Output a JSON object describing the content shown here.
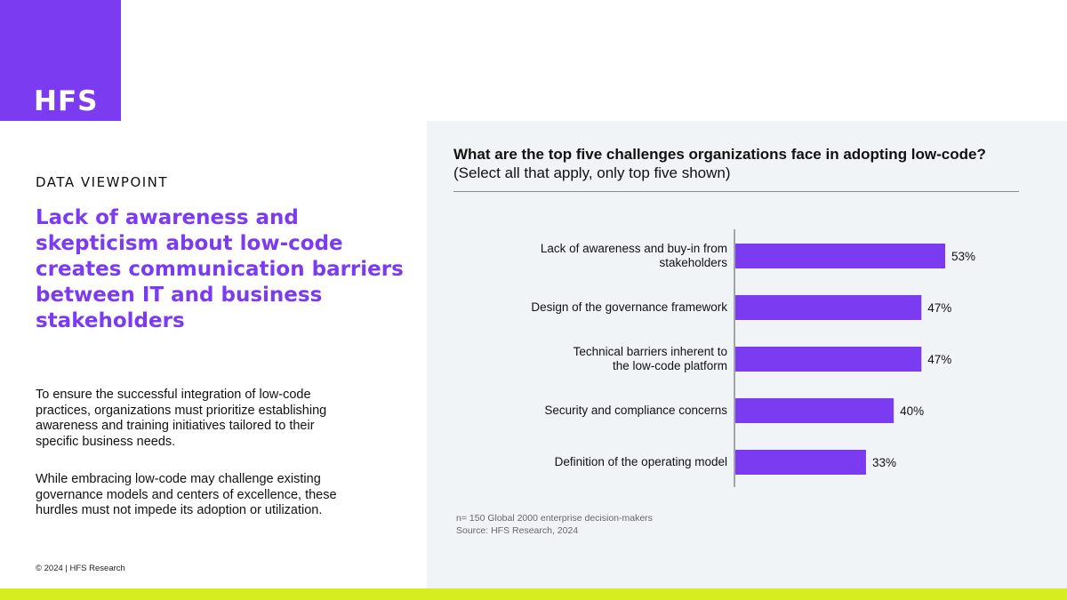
{
  "brand": {
    "logo": "HFS",
    "accent": "#7b3bf0",
    "footer_bar": "#d6ee1e"
  },
  "left": {
    "kicker": "DATA VIEWPOINT",
    "headline": "Lack of awareness and skepticism about low-code creates communication barriers between IT and business stakeholders",
    "paragraph1": "To ensure the successful integration of low-code practices, organizations must prioritize establishing awareness and training initiatives tailored to their specific business needs.",
    "paragraph2": "While embracing low-code may challenge existing governance models and centers of excellence, these hurdles must not impede its adoption or utilization.",
    "copyright": "© 2024 | HFS Research"
  },
  "chart_data": {
    "type": "bar",
    "orientation": "horizontal",
    "title": "What are the top five challenges organizations face in adopting low-code?",
    "subtitle": "(Select all that apply, only top five shown)",
    "categories": [
      [
        "Lack of awareness and buy-in from",
        "stakeholders"
      ],
      [
        "Design of the governance framework"
      ],
      [
        "Technical barriers inherent to",
        "the low-code platform"
      ],
      [
        "Security and compliance concerns"
      ],
      [
        "Definition of the operating model"
      ]
    ],
    "values": [
      53,
      47,
      47,
      40,
      33
    ],
    "value_labels": [
      "53%",
      "47%",
      "47%",
      "40%",
      "33%"
    ],
    "bar_color": "#7b3bf0",
    "xlim": [
      0,
      100
    ],
    "grid": false,
    "notes": [
      "n= 150 Global 2000 enterprise decision-makers",
      "Source: HFS Research, 2024"
    ]
  }
}
